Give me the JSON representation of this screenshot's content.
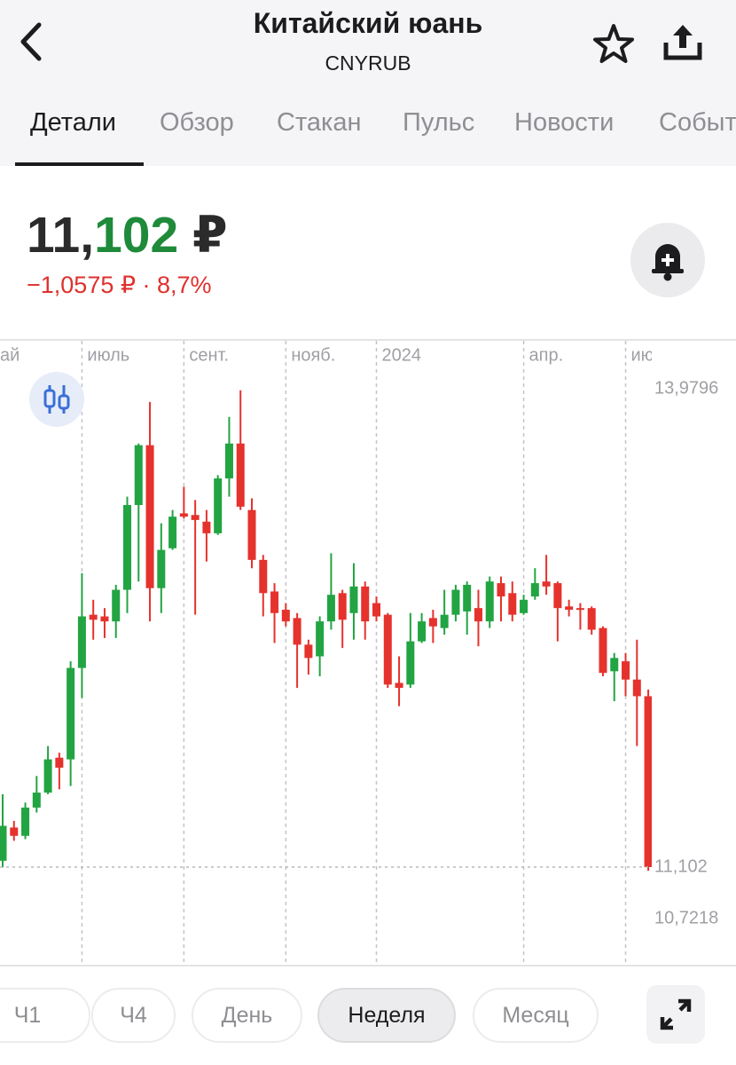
{
  "header": {
    "title": "Китайский юань",
    "subtitle": "CNYRUB"
  },
  "tabs": [
    "Детали",
    "Обзор",
    "Стакан",
    "Пульс",
    "Новости",
    "Событ"
  ],
  "price": {
    "integer": "11,",
    "fraction": "102",
    "currency": "₽",
    "change": "−1,0575 ₽ · 8,7%"
  },
  "periods": [
    "Ч1",
    "Ч4",
    "День",
    "Неделя",
    "Месяц"
  ],
  "chart_data": {
    "type": "candlestick",
    "categories": [
      null,
      null,
      null,
      null,
      null,
      null,
      null,
      null,
      null,
      null,
      null,
      null,
      null,
      null,
      null,
      null,
      null,
      null,
      null,
      null,
      null,
      null,
      null,
      null,
      null,
      null,
      null,
      null,
      null,
      null,
      null,
      null,
      null,
      null,
      null,
      null,
      null,
      null,
      null,
      null,
      null,
      null,
      null,
      null,
      null,
      null,
      null,
      null,
      null,
      null,
      null,
      null,
      null,
      null,
      null,
      null,
      null,
      null
    ],
    "open": [
      11.14,
      11.34,
      11.29,
      11.46,
      11.55,
      11.76,
      11.75,
      12.3,
      12.62,
      12.61,
      12.58,
      12.77,
      13.28,
      13.64,
      12.78,
      13.02,
      13.23,
      13.22,
      13.18,
      13.11,
      13.44,
      13.65,
      13.25,
      12.95,
      12.76,
      12.65,
      12.6,
      12.44,
      12.37,
      12.58,
      12.75,
      12.63,
      12.79,
      12.69,
      12.62,
      12.21,
      12.2,
      12.46,
      12.6,
      12.54,
      12.62,
      12.64,
      12.66,
      12.58,
      12.81,
      12.75,
      12.63,
      12.73,
      12.82,
      12.81,
      12.67,
      12.66,
      12.66,
      12.54,
      12.28,
      12.34,
      12.23,
      12.13
    ],
    "high": [
      11.54,
      11.38,
      11.49,
      11.65,
      11.83,
      11.79,
      12.34,
      12.87,
      12.71,
      12.66,
      12.8,
      13.33,
      13.65,
      13.9,
      13.17,
      13.25,
      13.39,
      13.31,
      13.25,
      13.46,
      13.81,
      13.97,
      13.32,
      12.98,
      12.81,
      12.69,
      12.63,
      12.47,
      12.61,
      12.99,
      12.77,
      12.93,
      12.82,
      12.73,
      12.63,
      12.37,
      12.63,
      12.63,
      12.65,
      12.77,
      12.8,
      12.82,
      12.77,
      12.85,
      12.85,
      12.82,
      12.74,
      12.9,
      12.98,
      12.82,
      12.71,
      12.69,
      12.67,
      12.55,
      12.39,
      12.39,
      12.47,
      12.17
    ],
    "low": [
      11.1,
      11.26,
      11.27,
      11.43,
      11.54,
      11.57,
      11.59,
      12.12,
      12.47,
      12.48,
      12.48,
      12.63,
      12.82,
      12.58,
      12.63,
      13.01,
      13.2,
      12.62,
      12.94,
      13.1,
      13.33,
      13.25,
      12.9,
      12.61,
      12.45,
      12.55,
      12.18,
      12.26,
      12.25,
      12.53,
      12.42,
      12.47,
      12.47,
      12.58,
      12.18,
      12.07,
      12.18,
      12.45,
      12.45,
      12.5,
      12.58,
      12.5,
      12.43,
      12.54,
      12.58,
      12.58,
      12.62,
      12.71,
      12.74,
      12.46,
      12.61,
      12.53,
      12.5,
      12.25,
      12.1,
      12.13,
      11.83,
      11.08
    ],
    "close": [
      11.35,
      11.29,
      11.46,
      11.55,
      11.75,
      11.7,
      12.3,
      12.61,
      12.59,
      12.58,
      12.77,
      13.28,
      13.64,
      12.78,
      13.01,
      13.21,
      13.21,
      13.19,
      13.11,
      13.44,
      13.65,
      13.27,
      12.95,
      12.75,
      12.63,
      12.58,
      12.44,
      12.36,
      12.58,
      12.74,
      12.59,
      12.79,
      12.58,
      12.61,
      12.2,
      12.18,
      12.46,
      12.58,
      12.55,
      12.62,
      12.77,
      12.8,
      12.58,
      12.82,
      12.73,
      12.62,
      12.71,
      12.81,
      12.79,
      12.66,
      12.65,
      12.65,
      12.53,
      12.27,
      12.36,
      12.23,
      12.13,
      11.102
    ],
    "up_color": "#22a442",
    "down_color": "#e5322d",
    "xlim": [
      -0.235,
      57.7
    ],
    "xticks": [
      {
        "value": -0.7,
        "label": "ай"
      },
      {
        "value": 7,
        "label": "июль"
      },
      {
        "value": 16,
        "label": "сент."
      },
      {
        "value": 25,
        "label": "нояб."
      },
      {
        "value": 33,
        "label": "2024"
      },
      {
        "value": 46,
        "label": "апр."
      },
      {
        "value": 55,
        "label": "ию"
      }
    ],
    "ylim": [
      10.5093,
      14.2786
    ],
    "yticks": [
      {
        "value": 13.9796,
        "label": "13,9796"
      },
      {
        "value": 10.7218,
        "label": "10,7218"
      }
    ],
    "last_price": {
      "value": 11.102,
      "label": "11,102"
    },
    "grid": true
  }
}
